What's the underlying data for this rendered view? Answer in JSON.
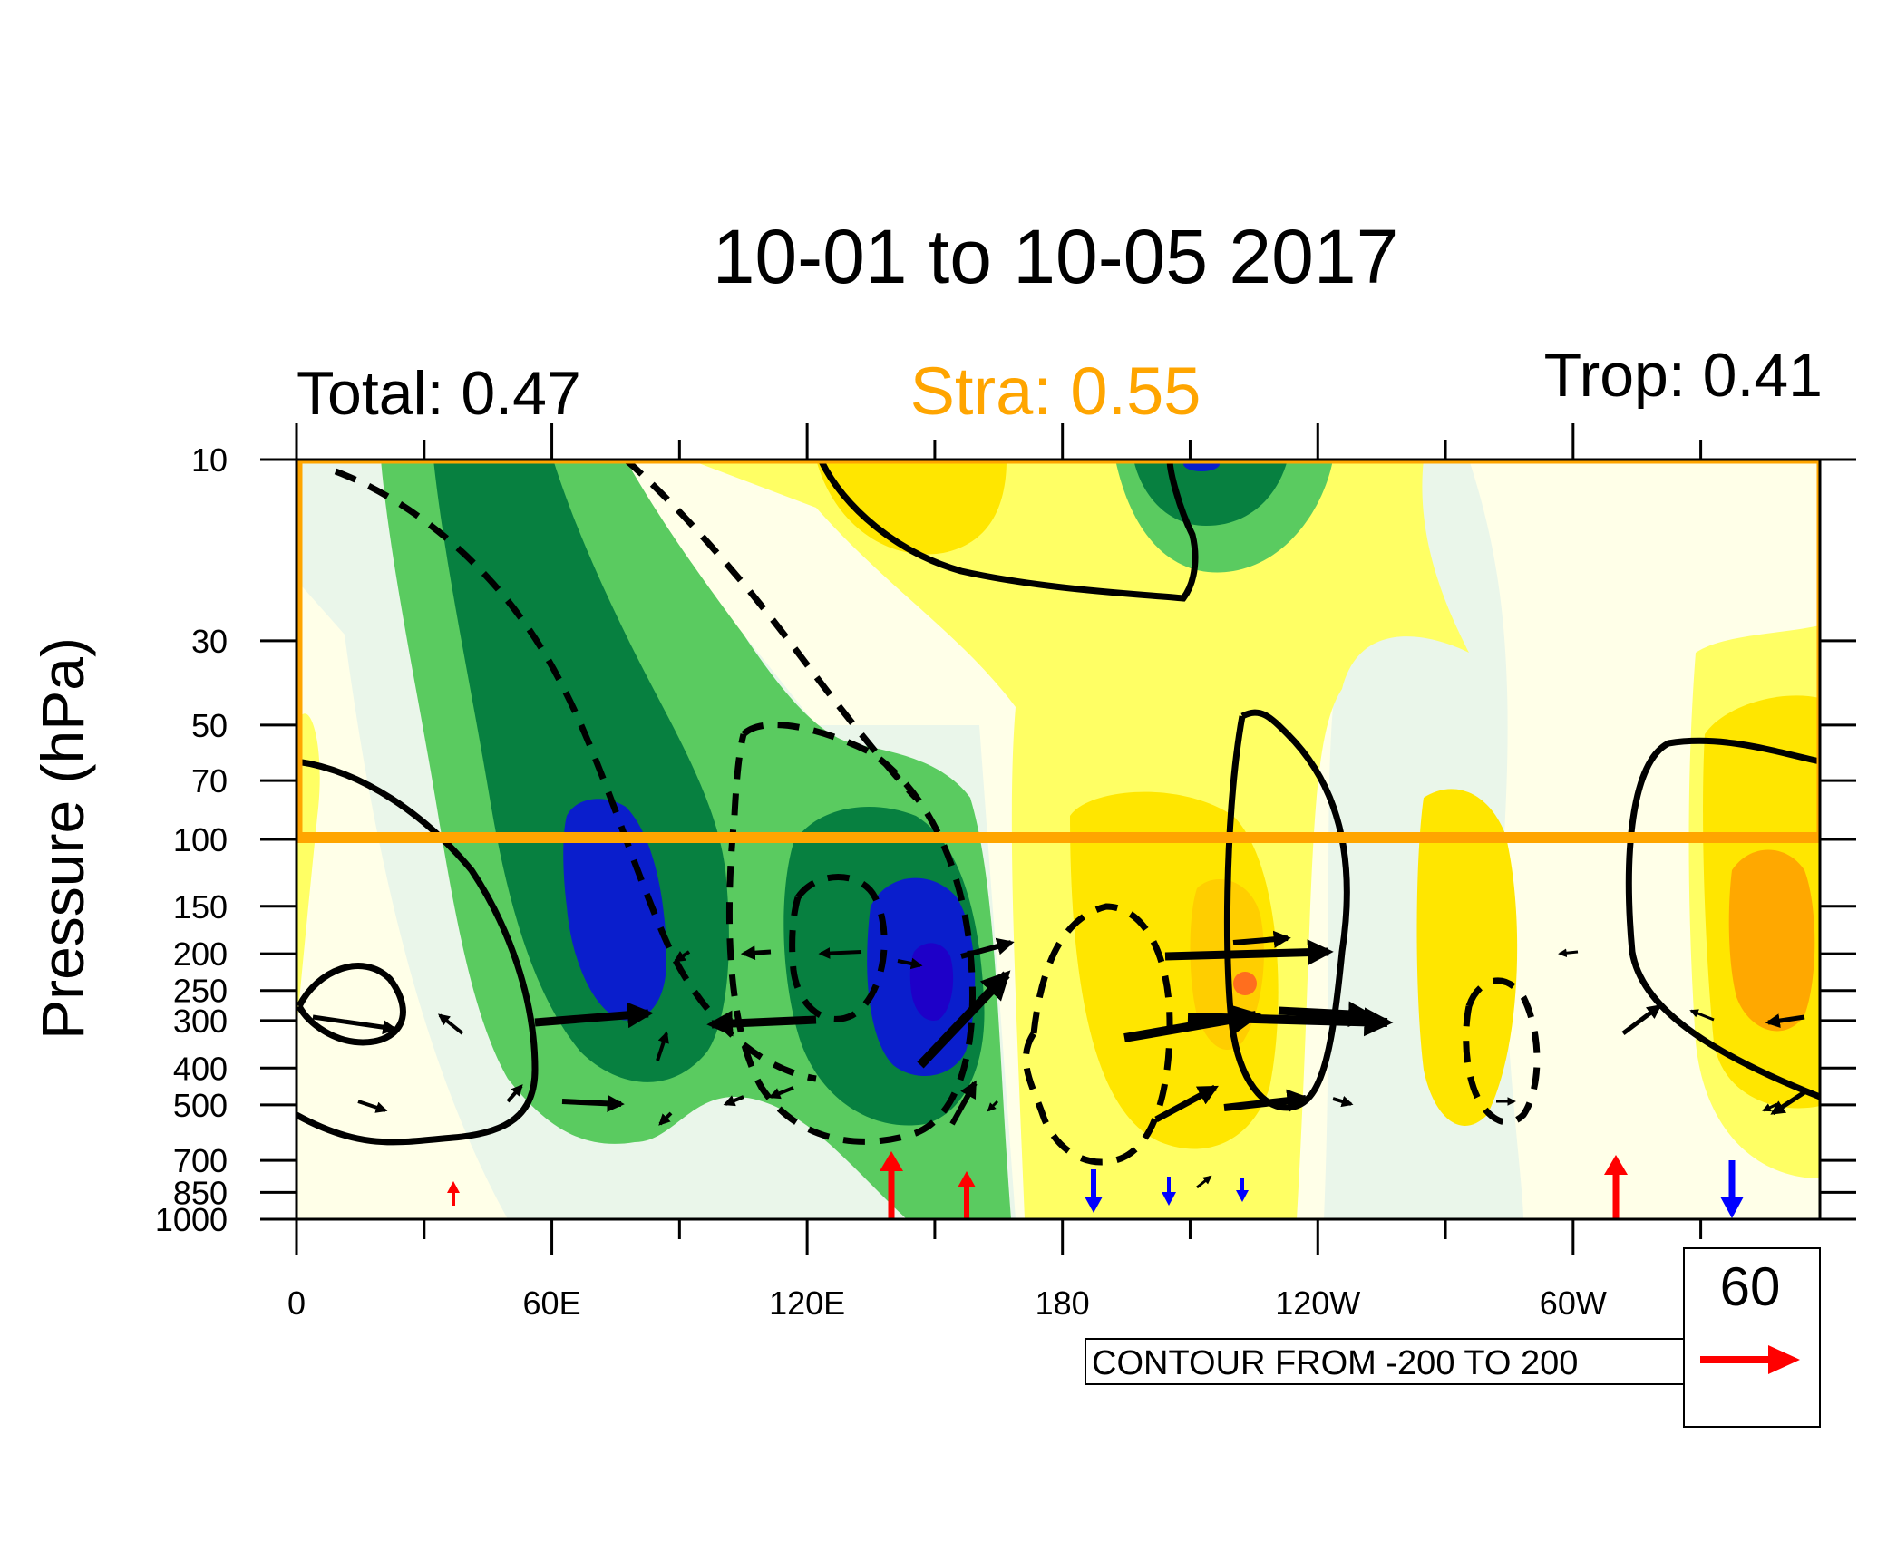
{
  "chart_data": {
    "type": "heatmap",
    "title": "10-01 to 10-05 2017",
    "left_label": "Total: 0.47",
    "center_label": "Stra: 0.55",
    "right_label": "Trop: 0.41",
    "ylabel": "Pressure (hPa)",
    "xlabel": "",
    "x_ticks": [
      {
        "lon": 0,
        "label": "0"
      },
      {
        "lon": 60,
        "label": "60E"
      },
      {
        "lon": 120,
        "label": "120E"
      },
      {
        "lon": 180,
        "label": "180"
      },
      {
        "lon": 240,
        "label": "120W"
      },
      {
        "lon": 300,
        "label": "60W"
      }
    ],
    "y_ticks": [
      {
        "p": 10,
        "label": "10"
      },
      {
        "p": 30,
        "label": "30"
      },
      {
        "p": 50,
        "label": "50"
      },
      {
        "p": 70,
        "label": "70"
      },
      {
        "p": 100,
        "label": "100"
      },
      {
        "p": 150,
        "label": "150"
      },
      {
        "p": 200,
        "label": "200"
      },
      {
        "p": 250,
        "label": "250"
      },
      {
        "p": 300,
        "label": "300"
      },
      {
        "p": 400,
        "label": "400"
      },
      {
        "p": 500,
        "label": "500"
      },
      {
        "p": 700,
        "label": "700"
      },
      {
        "p": 850,
        "label": "850"
      },
      {
        "p": 1000,
        "label": "1000"
      }
    ],
    "xlim": [
      0,
      358
    ],
    "ylim": [
      1000,
      10
    ],
    "y_scale": "log",
    "stratosphere_box": {
      "p_top": 10,
      "p_bottom": 100,
      "color": "#FFA500"
    },
    "contour_info": "CONTOUR FROM -200 TO 200",
    "vector_ref_value": "60",
    "colors": {
      "dark_blue": "#1E00C8",
      "blue": "#0A1ECC",
      "dark_green": "#078040",
      "green": "#5ACB60",
      "pale_green": "#EAF6EA",
      "cream": "#FFFFE8",
      "light_yellow": "#FFFF64",
      "yellow": "#FFE600",
      "gold": "#FFCE00",
      "orange": "#FFA800",
      "red_orange": "#FF6E1E",
      "ref_arrow": "#FF0000",
      "up_arrow": "#FF0000",
      "down_arrow": "#0000FF"
    }
  }
}
